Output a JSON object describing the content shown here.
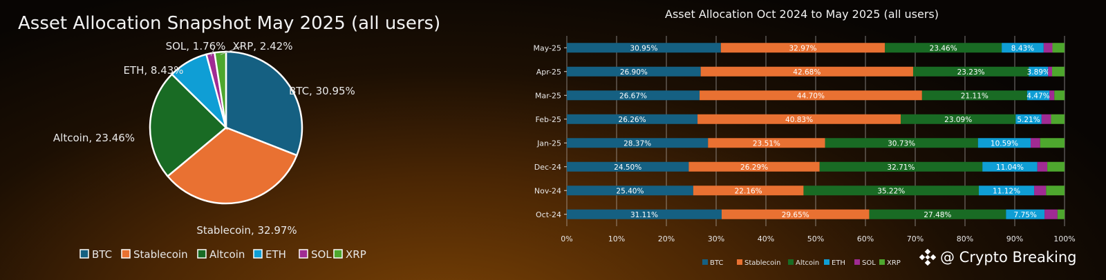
{
  "chart_data": [
    {
      "type": "pie",
      "title": "Asset Allocation Snapshot May 2025 (all users)",
      "legend_position": "bottom",
      "series": [
        {
          "name": "BTC",
          "value": 30.95,
          "label": "BTC, 30.95%",
          "color": "#156082"
        },
        {
          "name": "Stablecoin",
          "value": 32.97,
          "label": "Stablecoin, 32.97%",
          "color": "#e97132"
        },
        {
          "name": "Altcoin",
          "value": 23.46,
          "label": "Altcoin, 23.46%",
          "color": "#196b24"
        },
        {
          "name": "ETH",
          "value": 8.43,
          "label": "ETH, 8.43%",
          "color": "#0f9ed5"
        },
        {
          "name": "SOL",
          "value": 1.76,
          "label": "SOL, 1.76%",
          "color": "#a02b93"
        },
        {
          "name": "XRP",
          "value": 2.42,
          "label": "XRP, 2.42%",
          "color": "#4ea72e"
        }
      ]
    },
    {
      "type": "bar",
      "orientation": "horizontal",
      "stacked": true,
      "title": "Asset Allocation Oct 2024 to May 2025 (all users)",
      "legend_position": "bottom",
      "grid": true,
      "xlim": [
        0,
        100
      ],
      "x_ticks": [
        "0%",
        "10%",
        "20%",
        "30%",
        "40%",
        "50%",
        "60%",
        "70%",
        "80%",
        "90%",
        "100%"
      ],
      "categories": [
        "May-25",
        "Apr-25",
        "Mar-25",
        "Feb-25",
        "Jan-25",
        "Dec-24",
        "Nov-24",
        "Oct-24"
      ],
      "series": [
        {
          "name": "BTC",
          "color": "#156082",
          "values": [
            30.95,
            26.9,
            26.67,
            26.26,
            28.37,
            24.5,
            25.4,
            31.11
          ],
          "labels": [
            "30.95%",
            "26.90%",
            "26.67%",
            "26.26%",
            "28.37%",
            "24.50%",
            "25.40%",
            "31.11%"
          ]
        },
        {
          "name": "Stablecoin",
          "color": "#e97132",
          "values": [
            32.97,
            42.68,
            44.7,
            40.83,
            23.51,
            26.29,
            22.16,
            29.65
          ],
          "labels": [
            "32.97%",
            "42.68%",
            "44.70%",
            "40.83%",
            "23.51%",
            "26.29%",
            "22.16%",
            "29.65%"
          ]
        },
        {
          "name": "Altcoin",
          "color": "#196b24",
          "values": [
            23.46,
            23.23,
            21.11,
            23.09,
            30.73,
            32.71,
            35.22,
            27.48
          ],
          "labels": [
            "23.46%",
            "23.23%",
            "21.11%",
            "23.09%",
            "30.73%",
            "32.71%",
            "35.22%",
            "27.48%"
          ]
        },
        {
          "name": "ETH",
          "color": "#0f9ed5",
          "values": [
            8.43,
            3.89,
            4.47,
            5.21,
            10.59,
            11.04,
            11.12,
            7.75
          ],
          "labels": [
            "8.43%",
            "3.89%",
            "4.47%",
            "5.21%",
            "10.59%",
            "11.04%",
            "11.12%",
            "7.75%"
          ]
        },
        {
          "name": "SOL",
          "color": "#a02b93",
          "values": [
            1.76,
            0.8,
            1.0,
            1.9,
            1.9,
            2.0,
            2.4,
            2.6
          ],
          "labels": [
            "",
            "",
            "",
            "",
            "",
            "",
            "",
            ""
          ]
        },
        {
          "name": "XRP",
          "color": "#4ea72e",
          "values": [
            2.42,
            2.5,
            2.05,
            2.7,
            4.9,
            3.46,
            3.7,
            1.41
          ],
          "labels": [
            "",
            "",
            "",
            "",
            "",
            "",
            "",
            ""
          ]
        }
      ]
    }
  ],
  "watermark": {
    "text": "@ Crypto Breaking",
    "icon": "binance-diamond-icon"
  }
}
